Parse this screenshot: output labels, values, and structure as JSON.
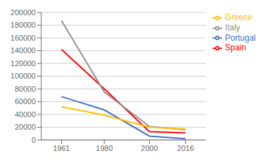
{
  "chart_data": {
    "type": "line",
    "x": [
      1961,
      1980,
      2000,
      2016
    ],
    "series": [
      {
        "name": "Portugal",
        "color": "#4472C4",
        "values": [
          68000,
          47000,
          6000,
          2000
        ]
      },
      {
        "name": "Spain",
        "color": "#FF0000",
        "values": [
          142000,
          80000,
          13000,
          11000
        ]
      },
      {
        "name": "Italy",
        "color": "#909090",
        "values": [
          187000,
          75000,
          21000,
          16000
        ]
      },
      {
        "name": "Greece",
        "color": "#FFC000",
        "values": [
          52000,
          39000,
          20000,
          17000
        ]
      }
    ],
    "xlim": [
      1952,
      2025
    ],
    "xticks": [
      1961,
      1980,
      2000,
      2016
    ],
    "ylim": [
      0,
      200000
    ],
    "yticks": [
      0,
      20000,
      40000,
      60000,
      80000,
      100000,
      120000,
      140000,
      160000,
      180000,
      200000
    ],
    "grid": true,
    "legend": "right"
  }
}
